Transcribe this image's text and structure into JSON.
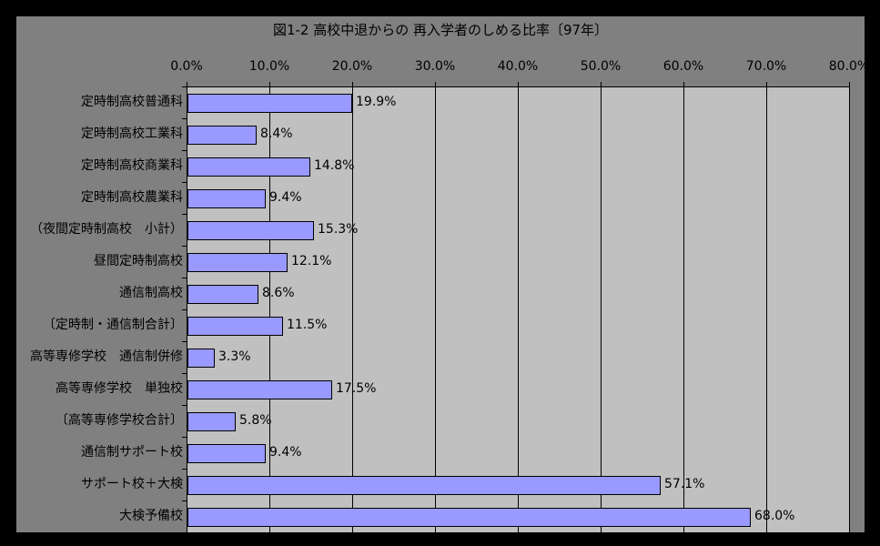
{
  "chart_data": {
    "type": "bar",
    "orientation": "horizontal",
    "title": "図1-2 高校中退からの 再入学者のしめる比率〔97年〕",
    "categories": [
      "定時制高校普通科",
      "定時制高校工業科",
      "定時制高校商業科",
      "定時制高校農業科",
      "（夜間定時制高校　小計）",
      "昼間定時制高校",
      "通信制高校",
      "〔定時制・通信制合計〕",
      "高等専修学校　通信制併修",
      "高等専修学校　単独校",
      "〔高等専修学校合計〕",
      "通信制サポート校",
      "サポート校＋大検",
      "大検予備校"
    ],
    "values": [
      19.9,
      8.4,
      14.8,
      9.4,
      15.3,
      12.1,
      8.6,
      11.5,
      3.3,
      17.5,
      5.8,
      9.4,
      57.1,
      68.0
    ],
    "value_labels": [
      "19.9%",
      "8.4%",
      "14.8%",
      "9.4%",
      "15.3%",
      "12.1%",
      "8.6%",
      "11.5%",
      "3.3%",
      "17.5%",
      "5.8%",
      "9.4%",
      "57.1%",
      "68.0%"
    ],
    "xlabel": "",
    "ylabel": "",
    "xlim": [
      0,
      80
    ],
    "axis_tick_labels": [
      "0.0%",
      "10.0%",
      "20.0%",
      "30.0%",
      "40.0%",
      "50.0%",
      "60.0%",
      "70.0%",
      "80.0%"
    ],
    "grid": true,
    "legend": false,
    "colors": {
      "outer_bg": "#000000",
      "chart_bg": "#808080",
      "plot_bg": "#C0C0C0",
      "bar_fill": "#9999FF",
      "bar_border": "#000000",
      "gridline": "#000000",
      "text": "#000000"
    }
  }
}
